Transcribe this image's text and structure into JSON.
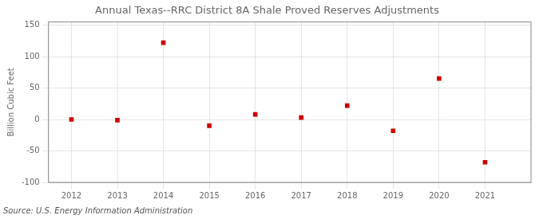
{
  "chart_data": {
    "type": "scatter",
    "title": "Annual Texas--RRC District 8A Shale Proved Reserves Adjustments",
    "ylabel": "Billion Cubic Feet",
    "annotation": "Source: U.S. Energy Information Administration",
    "x": [
      2012,
      2013,
      2014,
      2015,
      2016,
      2017,
      2018,
      2019,
      2020,
      2021
    ],
    "values": [
      0,
      -1,
      122,
      -10,
      8,
      3,
      22,
      -18,
      65,
      -68
    ],
    "color": "#cc0000",
    "marker": "square",
    "xlim": [
      2011.5,
      2022.0
    ],
    "xticks": [
      2012,
      2013,
      2014,
      2015,
      2016,
      2017,
      2018,
      2019,
      2020,
      2021
    ],
    "ylim": [
      -100,
      155
    ],
    "yticks": [
      -100,
      -50,
      0,
      50,
      100,
      150
    ],
    "grid": true
  }
}
